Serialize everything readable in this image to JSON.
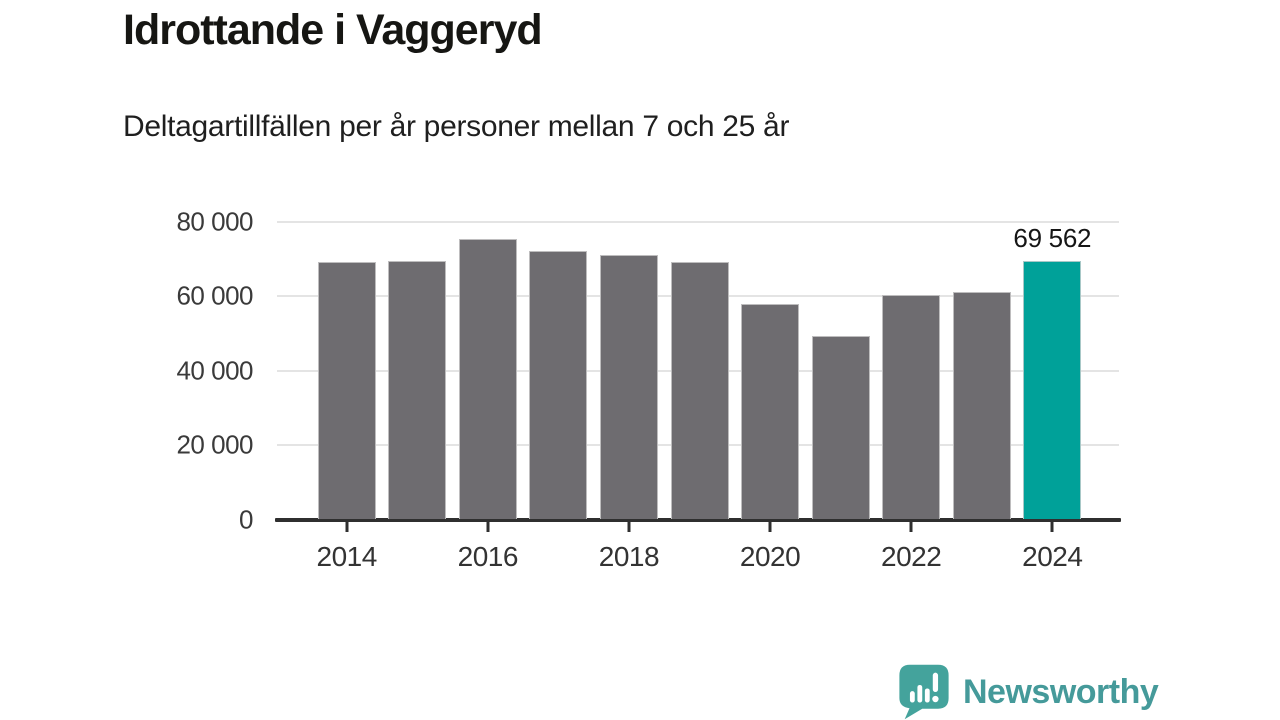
{
  "header": {
    "title": "Idrottande i Vaggeryd",
    "subtitle": "Deltagartillfällen per år personer mellan 7 och 25 år"
  },
  "chart_data": {
    "type": "bar",
    "title": "Idrottande i Vaggeryd",
    "subtitle": "Deltagartillfällen per år personer mellan 7 och 25 år",
    "categories": [
      "2014",
      "2015",
      "2016",
      "2017",
      "2018",
      "2019",
      "2020",
      "2021",
      "2022",
      "2023",
      "2024"
    ],
    "values": [
      69100,
      69600,
      75300,
      72200,
      71100,
      69100,
      57900,
      49400,
      60300,
      61100,
      69562
    ],
    "xlabel": "",
    "ylabel": "",
    "ylim": [
      0,
      80000
    ],
    "y_ticks": [
      0,
      20000,
      40000,
      60000,
      80000
    ],
    "y_tick_labels": [
      "0",
      "20 000",
      "40 000",
      "60 000",
      "80 000"
    ],
    "x_tick_labels": [
      "2014",
      "2016",
      "2018",
      "2020",
      "2022",
      "2024"
    ],
    "grid": "horizontal-only",
    "legend": "none",
    "highlight_index": 10,
    "highlight_label": "69 562",
    "bar_color": "#6e6c70",
    "highlight_color": "#00a199"
  },
  "footer": {
    "brand": "Newsworthy",
    "brand_color": "#459a9a",
    "icon": "newsworthy-speech-bubble-chart-icon",
    "icon_color": "#44a39c"
  }
}
